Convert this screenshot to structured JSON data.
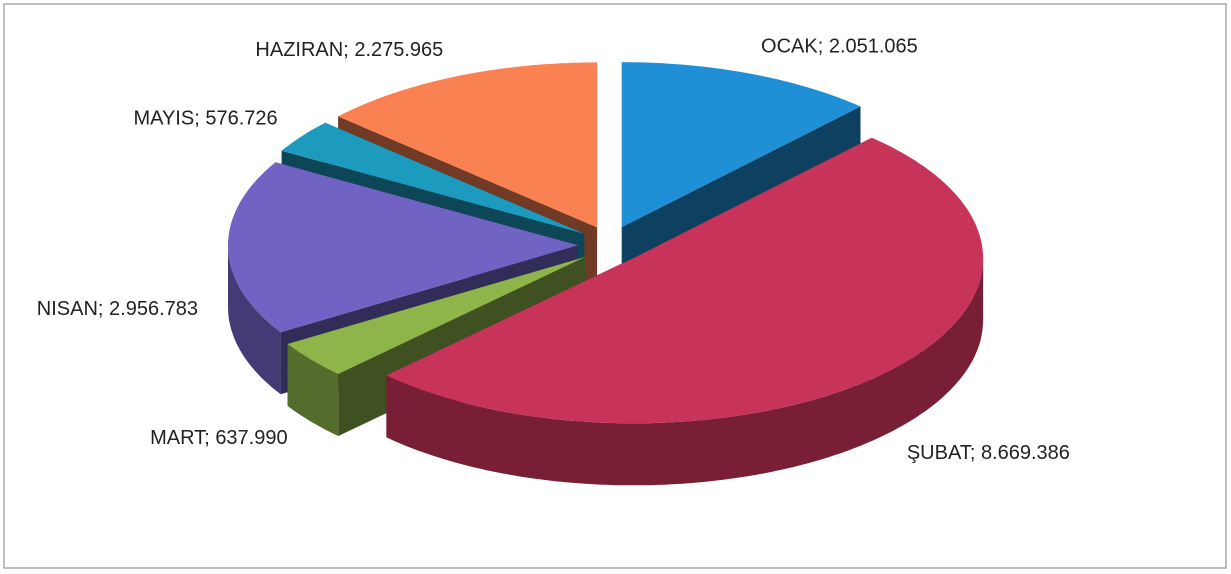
{
  "chart_data": {
    "type": "pie3d",
    "categories": [
      "OCAK",
      "ŞUBAT",
      "MART",
      "NISAN",
      "MAYIS",
      "HAZIRAN"
    ],
    "values": [
      2051065,
      8669386,
      637990,
      2956783,
      576726,
      2275965
    ],
    "value_labels": [
      "2.051.065",
      "8.669.386",
      "637.990",
      "2.956.783",
      "576.726",
      "2.275.965"
    ],
    "label_separator": "; ",
    "colors": [
      "#1f8fd6",
      "#c8335a",
      "#8db54a",
      "#7063c4",
      "#1d9bbf",
      "#f98152"
    ]
  }
}
